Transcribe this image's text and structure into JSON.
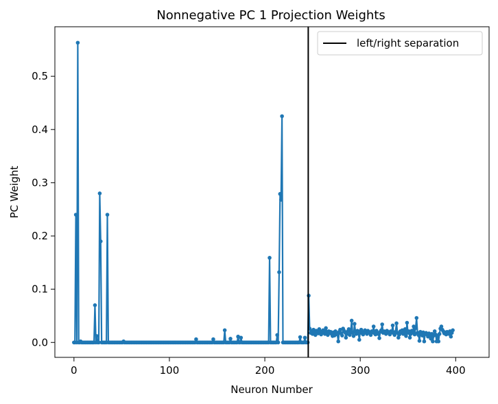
{
  "chart_data": {
    "type": "line",
    "title": "Nonnegative PC 1 Projection Weights",
    "xlabel": "Neuron Number",
    "ylabel": "PC Weight",
    "xlim": [
      -20,
      435
    ],
    "ylim": [
      -0.028,
      0.593
    ],
    "xticks": [
      0,
      100,
      200,
      300,
      400
    ],
    "yticks": [
      0.0,
      0.1,
      0.2,
      0.3,
      0.4,
      0.5
    ],
    "ytick_labels": [
      "0.0",
      "0.1",
      "0.2",
      "0.3",
      "0.4",
      "0.5"
    ],
    "grid": false,
    "legend_position": "top-right",
    "series": [
      {
        "color": "#1f77b4",
        "marker": "circle",
        "sparse_points": [
          [
            2,
            0.24
          ],
          [
            4,
            0.563
          ],
          [
            7,
            0.002
          ],
          [
            22,
            0.07
          ],
          [
            24,
            0.012
          ],
          [
            27,
            0.28
          ],
          [
            28,
            0.19
          ],
          [
            35,
            0.24
          ],
          [
            52,
            0.002
          ],
          [
            128,
            0.006
          ],
          [
            146,
            0.006
          ],
          [
            158,
            0.023
          ],
          [
            164,
            0.007
          ],
          [
            172,
            0.011
          ],
          [
            175,
            0.009
          ],
          [
            205,
            0.159
          ],
          [
            213,
            0.014
          ],
          [
            215,
            0.132
          ],
          [
            216,
            0.279
          ],
          [
            217,
            0.268
          ],
          [
            218,
            0.425
          ],
          [
            237,
            0.01
          ],
          [
            242,
            0.009
          ],
          [
            246,
            0.088
          ]
        ],
        "zero_range": [
          0,
          245
        ],
        "right_segment": {
          "x_start": 247,
          "values": [
            0.026,
            0.018,
            0.021,
            0.016,
            0.024,
            0.019,
            0.014,
            0.022,
            0.02,
            0.017,
            0.025,
            0.021,
            0.015,
            0.019,
            0.023,
            0.018,
            0.016,
            0.027,
            0.02,
            0.014,
            0.021,
            0.018,
            0.02,
            0.016,
            0.012,
            0.019,
            0.013,
            0.021,
            0.018,
            0.015,
            0.002,
            0.02,
            0.024,
            0.017,
            0.013,
            0.026,
            0.022,
            0.019,
            0.009,
            0.016,
            0.021,
            0.025,
            0.014,
            0.02,
            0.041,
            0.018,
            0.012,
            0.035,
            0.02,
            0.016,
            0.022,
            0.019,
            0.005,
            0.021,
            0.024,
            0.017,
            0.015,
            0.02,
            0.023,
            0.019,
            0.016,
            0.022,
            0.02,
            0.018,
            0.014,
            0.021,
            0.019,
            0.03,
            0.017,
            0.015,
            0.022,
            0.018,
            0.016,
            0.008,
            0.02,
            0.023,
            0.034,
            0.018,
            0.021,
            0.019,
            0.016,
            0.022,
            0.02,
            0.018,
            0.015,
            0.021,
            0.019,
            0.032,
            0.017,
            0.014,
            0.02,
            0.036,
            0.018,
            0.009,
            0.015,
            0.021,
            0.019,
            0.023,
            0.016,
            0.02,
            0.025,
            0.012,
            0.037,
            0.018,
            0.021,
            0.009,
            0.016,
            0.022,
            0.019,
            0.03,
            0.015,
            0.027,
            0.046,
            0.018,
            0.014,
            0.003,
            0.02,
            0.017,
            0.013,
            0.019,
            0.002,
            0.016,
            0.018,
            0.015,
            0.011,
            0.017,
            0.014,
            0.007,
            0.016,
            0.002,
            0.013,
            0.021,
            0.015,
            0.002,
            0.012,
            0.002,
            0.016,
            0.026,
            0.03,
            0.024,
            0.021,
            0.017,
            0.019,
            0.015,
            0.02,
            0.018,
            0.016,
            0.021,
            0.011,
            0.018,
            0.023
          ]
        }
      }
    ],
    "vline": {
      "x": 245.5,
      "color": "#000000",
      "label": "left/right separation"
    }
  }
}
